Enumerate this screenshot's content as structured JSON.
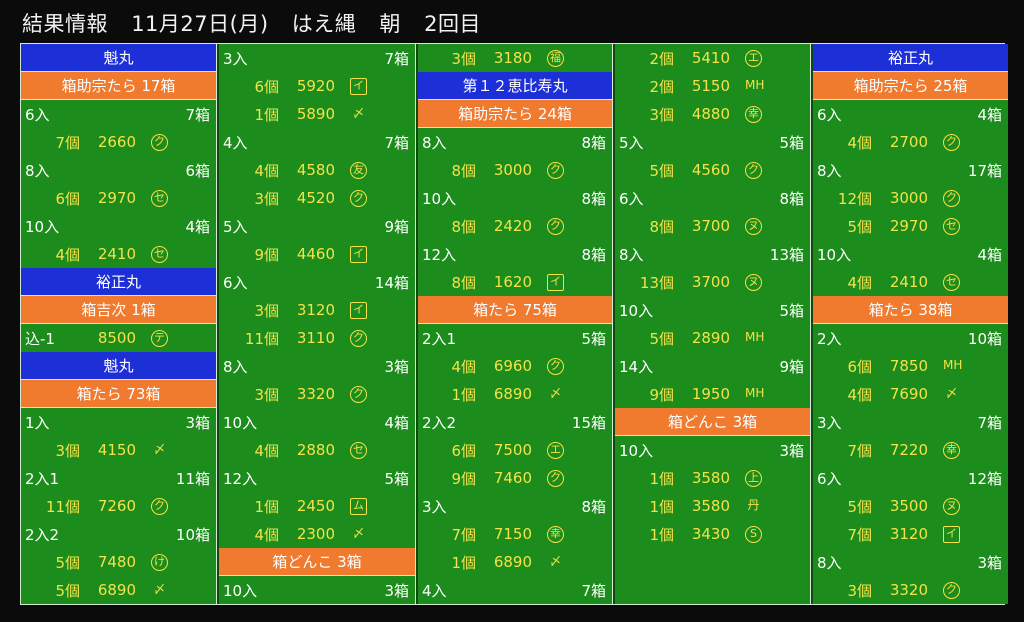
{
  "header": {
    "title": "結果情報",
    "date": "11月27日(月)",
    "market": "はえ縄",
    "session": "朝",
    "round": "2回目"
  },
  "colors": {
    "background": "#1c8c1c",
    "vessel_bar": "#1d2fd6",
    "fish_bar": "#f07a2e",
    "size_text": "#ffffff",
    "price_text": "#f3e24a"
  },
  "columns": [
    {
      "width": 196,
      "rows": [
        {
          "type": "vessel",
          "text": "魁丸"
        },
        {
          "type": "fish",
          "text": "箱助宗たら 17箱"
        },
        {
          "type": "size",
          "left": "6入",
          "right": "7箱"
        },
        {
          "type": "price",
          "qty": "7個",
          "price": "2660",
          "mark": "ク",
          "shape": "circle"
        },
        {
          "type": "size",
          "left": "8入",
          "right": "6箱"
        },
        {
          "type": "price",
          "qty": "6個",
          "price": "2970",
          "mark": "セ",
          "shape": "circle"
        },
        {
          "type": "size",
          "left": "10入",
          "right": "4箱"
        },
        {
          "type": "price",
          "qty": "4個",
          "price": "2410",
          "mark": "セ",
          "shape": "circle"
        },
        {
          "type": "vessel",
          "text": "裕正丸"
        },
        {
          "type": "fish",
          "text": "箱吉次 1箱"
        },
        {
          "type": "price",
          "size_label": "込-1",
          "qty": "",
          "price": "8500",
          "mark": "テ",
          "shape": "circle"
        },
        {
          "type": "vessel",
          "text": "魁丸"
        },
        {
          "type": "fish",
          "text": "箱たら 73箱"
        },
        {
          "type": "size",
          "left": "1入",
          "right": "3箱"
        },
        {
          "type": "price",
          "qty": "3個",
          "price": "4150",
          "mark": "〆",
          "shape": "none"
        },
        {
          "type": "size",
          "left": "2入1",
          "right": "11箱"
        },
        {
          "type": "price",
          "qty": "11個",
          "price": "7260",
          "mark": "ク",
          "shape": "circle"
        },
        {
          "type": "size",
          "left": "2入2",
          "right": "10箱"
        },
        {
          "type": "price",
          "qty": "5個",
          "price": "7480",
          "mark": "け",
          "shape": "circle"
        },
        {
          "type": "price",
          "qty": "5個",
          "price": "6890",
          "mark": "〆",
          "shape": "none"
        }
      ]
    },
    {
      "width": 197,
      "rows": [
        {
          "type": "size",
          "left": "3入",
          "right": "7箱"
        },
        {
          "type": "price",
          "qty": "6個",
          "price": "5920",
          "mark": "イ",
          "shape": "square"
        },
        {
          "type": "price",
          "qty": "1個",
          "price": "5890",
          "mark": "〆",
          "shape": "none"
        },
        {
          "type": "size",
          "left": "4入",
          "right": "7箱"
        },
        {
          "type": "price",
          "qty": "4個",
          "price": "4580",
          "mark": "友",
          "shape": "circle"
        },
        {
          "type": "price",
          "qty": "3個",
          "price": "4520",
          "mark": "ク",
          "shape": "circle"
        },
        {
          "type": "size",
          "left": "5入",
          "right": "9箱"
        },
        {
          "type": "price",
          "qty": "9個",
          "price": "4460",
          "mark": "イ",
          "shape": "square"
        },
        {
          "type": "size",
          "left": "6入",
          "right": "14箱"
        },
        {
          "type": "price",
          "qty": "3個",
          "price": "3120",
          "mark": "イ",
          "shape": "square"
        },
        {
          "type": "price",
          "qty": "11個",
          "price": "3110",
          "mark": "ク",
          "shape": "circle"
        },
        {
          "type": "size",
          "left": "8入",
          "right": "3箱"
        },
        {
          "type": "price",
          "qty": "3個",
          "price": "3320",
          "mark": "ク",
          "shape": "circle"
        },
        {
          "type": "size",
          "left": "10入",
          "right": "4箱"
        },
        {
          "type": "price",
          "qty": "4個",
          "price": "2880",
          "mark": "セ",
          "shape": "circle"
        },
        {
          "type": "size",
          "left": "12入",
          "right": "5箱"
        },
        {
          "type": "price",
          "qty": "1個",
          "price": "2450",
          "mark": "ム",
          "shape": "square"
        },
        {
          "type": "price",
          "qty": "4個",
          "price": "2300",
          "mark": "〆",
          "shape": "none"
        },
        {
          "type": "fish",
          "text": "箱どんこ 3箱"
        },
        {
          "type": "size",
          "left": "10入",
          "right": "3箱"
        }
      ]
    },
    {
      "width": 195,
      "rows": [
        {
          "type": "price",
          "qty": "3個",
          "price": "3180",
          "mark": "福",
          "shape": "circle"
        },
        {
          "type": "vessel",
          "text": "第１２恵比寿丸"
        },
        {
          "type": "fish",
          "text": "箱助宗たら 24箱"
        },
        {
          "type": "size",
          "left": "8入",
          "right": "8箱"
        },
        {
          "type": "price",
          "qty": "8個",
          "price": "3000",
          "mark": "ク",
          "shape": "circle"
        },
        {
          "type": "size",
          "left": "10入",
          "right": "8箱"
        },
        {
          "type": "price",
          "qty": "8個",
          "price": "2420",
          "mark": "ク",
          "shape": "circle"
        },
        {
          "type": "size",
          "left": "12入",
          "right": "8箱"
        },
        {
          "type": "price",
          "qty": "8個",
          "price": "1620",
          "mark": "イ",
          "shape": "square"
        },
        {
          "type": "fish",
          "text": "箱たら 75箱"
        },
        {
          "type": "size",
          "left": "2入1",
          "right": "5箱"
        },
        {
          "type": "price",
          "qty": "4個",
          "price": "6960",
          "mark": "ク",
          "shape": "circle"
        },
        {
          "type": "price",
          "qty": "1個",
          "price": "6890",
          "mark": "〆",
          "shape": "none"
        },
        {
          "type": "size",
          "left": "2入2",
          "right": "15箱"
        },
        {
          "type": "price",
          "qty": "6個",
          "price": "7500",
          "mark": "エ",
          "shape": "circle"
        },
        {
          "type": "price",
          "qty": "9個",
          "price": "7460",
          "mark": "ク",
          "shape": "circle"
        },
        {
          "type": "size",
          "left": "3入",
          "right": "8箱"
        },
        {
          "type": "price",
          "qty": "7個",
          "price": "7150",
          "mark": "幸",
          "shape": "circle"
        },
        {
          "type": "price",
          "qty": "1個",
          "price": "6890",
          "mark": "〆",
          "shape": "none"
        },
        {
          "type": "size",
          "left": "4入",
          "right": "7箱"
        }
      ]
    },
    {
      "width": 196,
      "rows": [
        {
          "type": "price",
          "qty": "2個",
          "price": "5410",
          "mark": "エ",
          "shape": "circle"
        },
        {
          "type": "price",
          "qty": "2個",
          "price": "5150",
          "mark": "MH",
          "shape": "none"
        },
        {
          "type": "price",
          "qty": "3個",
          "price": "4880",
          "mark": "幸",
          "shape": "circle"
        },
        {
          "type": "size",
          "left": "5入",
          "right": "5箱"
        },
        {
          "type": "price",
          "qty": "5個",
          "price": "4560",
          "mark": "ク",
          "shape": "circle"
        },
        {
          "type": "size",
          "left": "6入",
          "right": "8箱"
        },
        {
          "type": "price",
          "qty": "8個",
          "price": "3700",
          "mark": "ヌ",
          "shape": "circle"
        },
        {
          "type": "size",
          "left": "8入",
          "right": "13箱"
        },
        {
          "type": "price",
          "qty": "13個",
          "price": "3700",
          "mark": "ヌ",
          "shape": "circle"
        },
        {
          "type": "size",
          "left": "10入",
          "right": "5箱"
        },
        {
          "type": "price",
          "qty": "5個",
          "price": "2890",
          "mark": "MH",
          "shape": "none"
        },
        {
          "type": "size",
          "left": "14入",
          "right": "9箱"
        },
        {
          "type": "price",
          "qty": "9個",
          "price": "1950",
          "mark": "MH",
          "shape": "none"
        },
        {
          "type": "fish",
          "text": "箱どんこ 3箱"
        },
        {
          "type": "size",
          "left": "10入",
          "right": "3箱"
        },
        {
          "type": "price",
          "qty": "1個",
          "price": "3580",
          "mark": "上",
          "shape": "circle"
        },
        {
          "type": "price",
          "qty": "1個",
          "price": "3580",
          "mark": "丹",
          "shape": "none"
        },
        {
          "type": "price",
          "qty": "1個",
          "price": "3430",
          "mark": "S",
          "shape": "circle"
        }
      ]
    },
    {
      "width": 195,
      "rows": [
        {
          "type": "vessel",
          "text": "裕正丸"
        },
        {
          "type": "fish",
          "text": "箱助宗たら 25箱"
        },
        {
          "type": "size",
          "left": "6入",
          "right": "4箱"
        },
        {
          "type": "price",
          "qty": "4個",
          "price": "2700",
          "mark": "ク",
          "shape": "circle"
        },
        {
          "type": "size",
          "left": "8入",
          "right": "17箱"
        },
        {
          "type": "price",
          "qty": "12個",
          "price": "3000",
          "mark": "ク",
          "shape": "circle"
        },
        {
          "type": "price",
          "qty": "5個",
          "price": "2970",
          "mark": "セ",
          "shape": "circle"
        },
        {
          "type": "size",
          "left": "10入",
          "right": "4箱"
        },
        {
          "type": "price",
          "qty": "4個",
          "price": "2410",
          "mark": "セ",
          "shape": "circle"
        },
        {
          "type": "fish",
          "text": "箱たら 38箱"
        },
        {
          "type": "size",
          "left": "2入",
          "right": "10箱"
        },
        {
          "type": "price",
          "qty": "6個",
          "price": "7850",
          "mark": "MH",
          "shape": "none"
        },
        {
          "type": "price",
          "qty": "4個",
          "price": "7690",
          "mark": "〆",
          "shape": "none"
        },
        {
          "type": "size",
          "left": "3入",
          "right": "7箱"
        },
        {
          "type": "price",
          "qty": "7個",
          "price": "7220",
          "mark": "幸",
          "shape": "circle"
        },
        {
          "type": "size",
          "left": "6入",
          "right": "12箱"
        },
        {
          "type": "price",
          "qty": "5個",
          "price": "3500",
          "mark": "ヌ",
          "shape": "circle"
        },
        {
          "type": "price",
          "qty": "7個",
          "price": "3120",
          "mark": "イ",
          "shape": "square"
        },
        {
          "type": "size",
          "left": "8入",
          "right": "3箱"
        },
        {
          "type": "price",
          "qty": "3個",
          "price": "3320",
          "mark": "ク",
          "shape": "circle"
        }
      ]
    }
  ]
}
